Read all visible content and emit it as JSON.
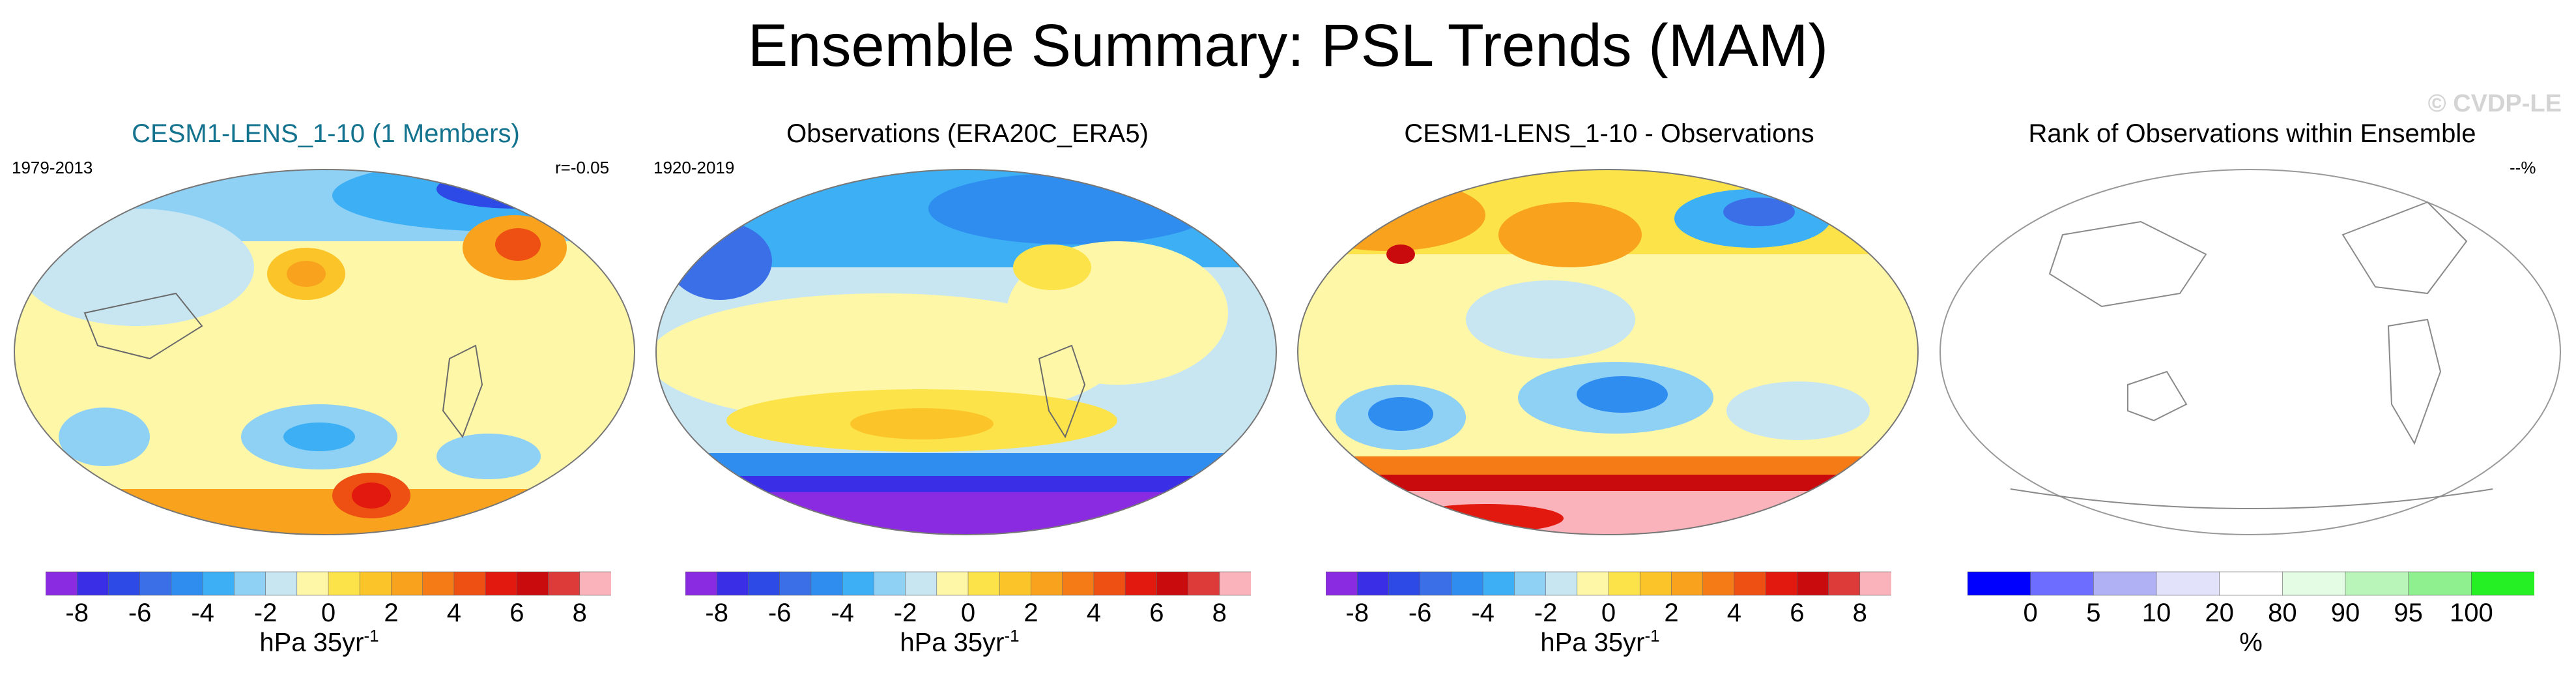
{
  "figure": {
    "title": "Ensemble Summary: PSL Trends (MAM)",
    "watermark": "© CVDP-LE"
  },
  "panels": [
    {
      "title": "CESM1-LENS_1-10 (1 Members)",
      "title_color": "#13728d",
      "left_label": "1979-2013",
      "right_label": "r=-0.05",
      "map_fill": "yellow-blue trends, strong positive over Southern Ocean",
      "colorbar": "trend",
      "units": "hPa 35yr",
      "units_exponent": "-1"
    },
    {
      "title": "Observations (ERA20C_ERA5)",
      "title_color": "#000000",
      "left_label": "1920-2019",
      "right_label": "",
      "map_fill": "purple Antarctic, blue high latitudes",
      "colorbar": "trend",
      "units": "hPa 35yr",
      "units_exponent": "-1"
    },
    {
      "title": "CESM1-LENS_1-10 - Observations",
      "title_color": "#000000",
      "left_label": "",
      "right_label": "",
      "map_fill": "red/pink Antarctic, mixed elsewhere",
      "colorbar": "trend",
      "units": "hPa 35yr",
      "units_exponent": "-1"
    },
    {
      "title": "Rank of Observations within Ensemble",
      "title_color": "#000000",
      "left_label": "",
      "right_label": "--%",
      "map_fill": "blank",
      "colorbar": "rank",
      "units": "%",
      "units_exponent": ""
    }
  ],
  "trend_colorbar": {
    "colors": [
      "#8a2be2",
      "#3a2ee6",
      "#2d49e6",
      "#3b6fe8",
      "#2f8df0",
      "#3db0f5",
      "#8fd0f5",
      "#c8e6f2",
      "#fff7a8",
      "#fde34a",
      "#fbc52a",
      "#f8a21e",
      "#f47b16",
      "#ee4f12",
      "#e2190f",
      "#c90b0e",
      "#dd3a3a",
      "#fbb3bb"
    ],
    "tick_labels": [
      "-8",
      "-6",
      "-4",
      "-2",
      "0",
      "2",
      "4",
      "6",
      "8"
    ]
  },
  "rank_colorbar": {
    "colors": [
      "#0000ff",
      "#6d6dff",
      "#b0b0f5",
      "#e2e2fb",
      "#ffffff",
      "#e4fbe4",
      "#b9f5b9",
      "#8ef08e",
      "#24f024"
    ],
    "tick_labels": [
      "0",
      "5",
      "10",
      "20",
      "80",
      "90",
      "95",
      "100"
    ]
  }
}
